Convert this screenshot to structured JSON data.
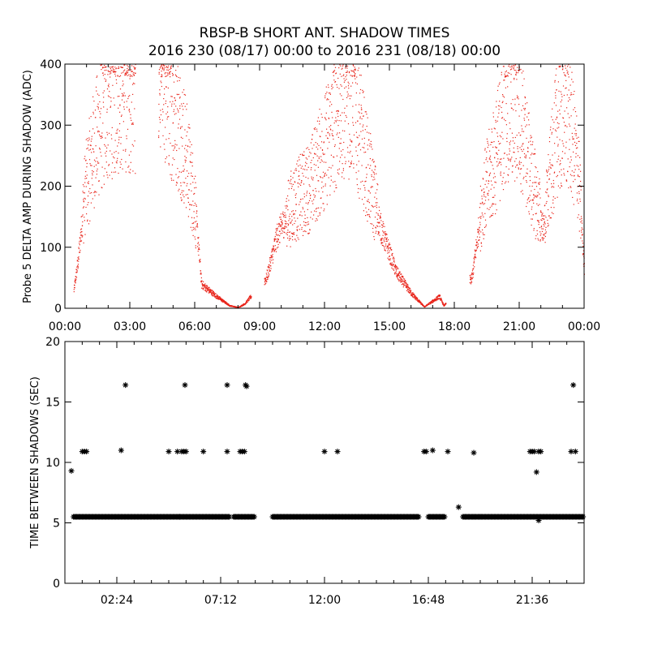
{
  "title_line1": "RBSP-B SHORT ANT. SHADOW TIMES",
  "title_line2": "2016 230 (08/17) 00:00 to 2016 231 (08/18) 00:00",
  "colors": {
    "top_series": "#e8241a",
    "bottom_series": "#000000",
    "axes": "#000000"
  },
  "chart_data": [
    {
      "type": "scatter",
      "ylabel": "Probe 5 DELTA AMP DURING SHADOW (ADC)",
      "xlabel": "",
      "xlim": [
        "00:00",
        "24:00"
      ],
      "ylim": [
        0,
        400
      ],
      "x_tick_labels": [
        "00:00",
        "03:00",
        "06:00",
        "09:00",
        "12:00",
        "15:00",
        "18:00",
        "21:00",
        "00:00"
      ],
      "y_tick_labels": [
        "0",
        "100",
        "200",
        "300",
        "400"
      ],
      "y_ticks": [
        0,
        100,
        200,
        300,
        400
      ],
      "marker": "dot",
      "color": "#e8241a",
      "envelope_points": [
        {
          "x_hours": 0.4,
          "y": 30
        },
        {
          "x_hours": 0.6,
          "y": 80
        },
        {
          "x_hours": 0.9,
          "y": 190
        },
        {
          "x_hours": 1.3,
          "y": 260
        },
        {
          "x_hours": 1.8,
          "y": 320
        },
        {
          "x_hours": 2.3,
          "y": 350
        },
        {
          "x_hours": 2.9,
          "y": 360
        },
        {
          "x_hours": 3.5,
          "y": 340
        },
        {
          "x_hours": 4.3,
          "y": 380
        },
        {
          "x_hours": 4.9,
          "y": 340
        },
        {
          "x_hours": 5.5,
          "y": 270
        },
        {
          "x_hours": 6.0,
          "y": 170
        },
        {
          "x_hours": 6.3,
          "y": 40
        },
        {
          "x_hours": 7.0,
          "y": 20
        },
        {
          "x_hours": 7.6,
          "y": 5
        },
        {
          "x_hours": 8.0,
          "y": 2
        },
        {
          "x_hours": 8.3,
          "y": 8
        },
        {
          "x_hours": 9.3,
          "y": 50
        },
        {
          "x_hours": 9.8,
          "y": 120
        },
        {
          "x_hours": 10.5,
          "y": 170
        },
        {
          "x_hours": 11.3,
          "y": 200
        },
        {
          "x_hours": 12.0,
          "y": 260
        },
        {
          "x_hours": 12.7,
          "y": 330
        },
        {
          "x_hours": 13.3,
          "y": 340
        },
        {
          "x_hours": 13.9,
          "y": 240
        },
        {
          "x_hours": 14.6,
          "y": 130
        },
        {
          "x_hours": 15.3,
          "y": 60
        },
        {
          "x_hours": 16.0,
          "y": 25
        },
        {
          "x_hours": 16.6,
          "y": 3
        },
        {
          "x_hours": 17.3,
          "y": 20
        },
        {
          "x_hours": 17.5,
          "y": 5
        },
        {
          "x_hours": 18.8,
          "y": 50
        },
        {
          "x_hours": 19.3,
          "y": 180
        },
        {
          "x_hours": 19.9,
          "y": 250
        },
        {
          "x_hours": 20.4,
          "y": 330
        },
        {
          "x_hours": 21.0,
          "y": 320
        },
        {
          "x_hours": 21.5,
          "y": 220
        },
        {
          "x_hours": 22.1,
          "y": 130
        },
        {
          "x_hours": 22.7,
          "y": 290
        },
        {
          "x_hours": 23.2,
          "y": 320
        },
        {
          "x_hours": 23.7,
          "y": 230
        },
        {
          "x_hours": 24.0,
          "y": 60
        }
      ]
    },
    {
      "type": "scatter",
      "ylabel": "TIME BETWEEN SHADOWS (SEC)",
      "xlabel": "",
      "xlim": [
        "00:00",
        "24:00"
      ],
      "ylim": [
        0,
        20
      ],
      "x_tick_labels": [
        "02:24",
        "07:12",
        "12:00",
        "16:48",
        "21:36"
      ],
      "x_ticks_hours": [
        2.4,
        7.2,
        12.0,
        16.8,
        21.6
      ],
      "y_tick_labels": [
        "0",
        "5",
        "10",
        "15",
        "20"
      ],
      "y_ticks": [
        0,
        5,
        10,
        15,
        20
      ],
      "marker": "asterisk",
      "color": "#000000",
      "baseline": {
        "y": 5.5,
        "segments_hours": [
          [
            0.4,
            7.6
          ],
          [
            7.8,
            8.8
          ],
          [
            9.6,
            16.4
          ],
          [
            16.8,
            17.6
          ],
          [
            18.4,
            24.0
          ]
        ]
      },
      "points": [
        {
          "x_hours": 0.3,
          "y": 9.3
        },
        {
          "x_hours": 0.8,
          "y": 10.9
        },
        {
          "x_hours": 0.9,
          "y": 10.9
        },
        {
          "x_hours": 1.0,
          "y": 10.9
        },
        {
          "x_hours": 2.8,
          "y": 16.4
        },
        {
          "x_hours": 2.6,
          "y": 11.0
        },
        {
          "x_hours": 4.8,
          "y": 10.9
        },
        {
          "x_hours": 5.2,
          "y": 10.9
        },
        {
          "x_hours": 5.4,
          "y": 10.9
        },
        {
          "x_hours": 5.5,
          "y": 10.9
        },
        {
          "x_hours": 5.6,
          "y": 10.9
        },
        {
          "x_hours": 5.3,
          "y": 5.5
        },
        {
          "x_hours": 5.55,
          "y": 16.4
        },
        {
          "x_hours": 6.4,
          "y": 10.9
        },
        {
          "x_hours": 7.5,
          "y": 16.4
        },
        {
          "x_hours": 7.5,
          "y": 10.9
        },
        {
          "x_hours": 8.1,
          "y": 10.9
        },
        {
          "x_hours": 8.3,
          "y": 10.9
        },
        {
          "x_hours": 8.35,
          "y": 16.4
        },
        {
          "x_hours": 8.4,
          "y": 16.3
        },
        {
          "x_hours": 8.2,
          "y": 10.9
        },
        {
          "x_hours": 12.0,
          "y": 10.9
        },
        {
          "x_hours": 12.6,
          "y": 10.9
        },
        {
          "x_hours": 16.6,
          "y": 10.9
        },
        {
          "x_hours": 16.7,
          "y": 10.9
        },
        {
          "x_hours": 17.0,
          "y": 11.0
        },
        {
          "x_hours": 17.7,
          "y": 10.9
        },
        {
          "x_hours": 18.2,
          "y": 6.3
        },
        {
          "x_hours": 18.9,
          "y": 10.8
        },
        {
          "x_hours": 18.9,
          "y": 5.5
        },
        {
          "x_hours": 19.2,
          "y": 5.5
        },
        {
          "x_hours": 21.5,
          "y": 10.9
        },
        {
          "x_hours": 21.6,
          "y": 10.9
        },
        {
          "x_hours": 21.7,
          "y": 10.9
        },
        {
          "x_hours": 21.9,
          "y": 10.9
        },
        {
          "x_hours": 22.0,
          "y": 10.9
        },
        {
          "x_hours": 21.8,
          "y": 9.2
        },
        {
          "x_hours": 21.9,
          "y": 5.2
        },
        {
          "x_hours": 23.4,
          "y": 10.9
        },
        {
          "x_hours": 23.6,
          "y": 10.9
        },
        {
          "x_hours": 23.5,
          "y": 16.4
        }
      ]
    }
  ]
}
